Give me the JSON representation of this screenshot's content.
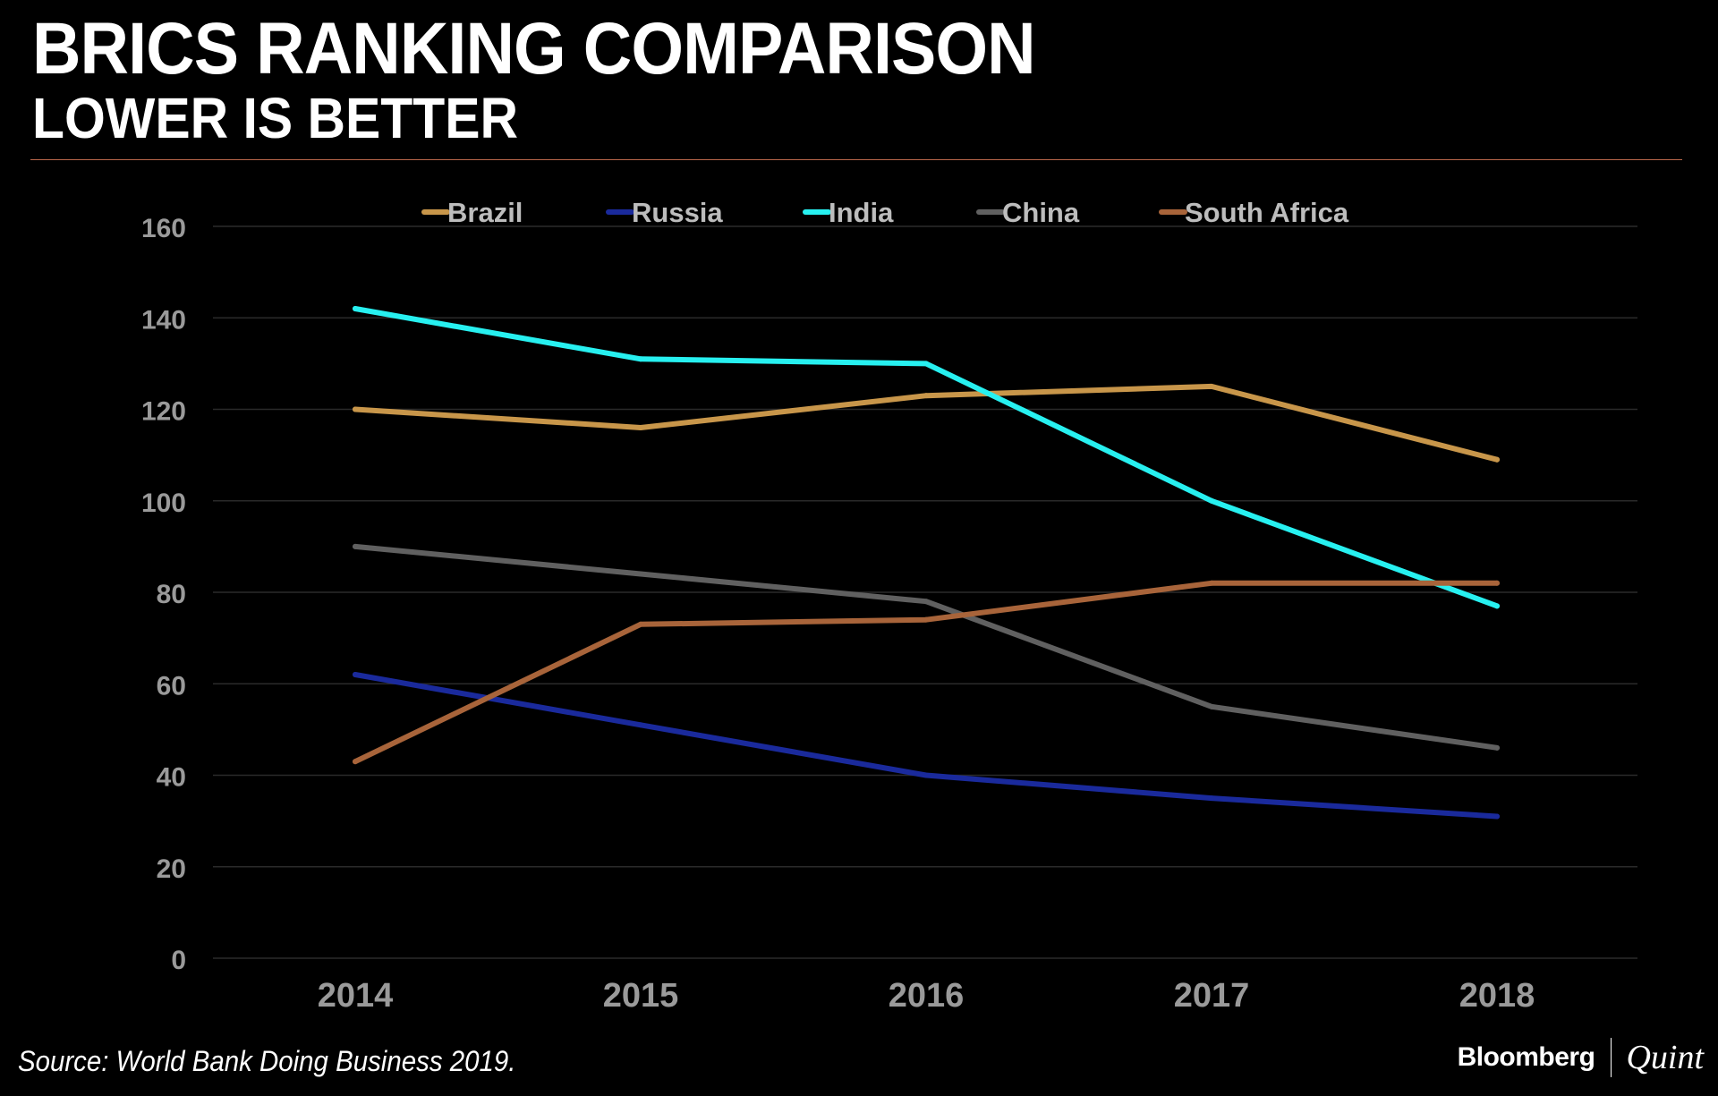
{
  "header": {
    "title": "BRICS RANKING COMPARISON",
    "subtitle": "LOWER IS BETTER"
  },
  "footer": {
    "source": "Source: World Bank Doing Business 2019.",
    "brand_primary": "Bloomberg",
    "brand_secondary": "Quint"
  },
  "colors": {
    "background": "#000000",
    "divider": "#b8664a",
    "gridline": "#2a2a2a",
    "tick_label": "#9a9a9a",
    "legend_text": "#bdbdbd"
  },
  "chart_data": {
    "type": "line",
    "title": "BRICS RANKING COMPARISON",
    "subtitle": "LOWER IS BETTER",
    "xlabel": "",
    "ylabel": "",
    "categories": [
      "2014",
      "2015",
      "2016",
      "2017",
      "2018"
    ],
    "ylim": [
      0,
      160
    ],
    "yticks": [
      0,
      20,
      40,
      60,
      80,
      100,
      120,
      140,
      160
    ],
    "grid": true,
    "legend_position": "top",
    "series": [
      {
        "name": "Brazil",
        "color": "#c8964a",
        "values": [
          120,
          116,
          123,
          125,
          109
        ]
      },
      {
        "name": "Russia",
        "color": "#1a2a9c",
        "values": [
          62,
          51,
          40,
          35,
          31
        ]
      },
      {
        "name": "India",
        "color": "#27f0f0",
        "values": [
          142,
          131,
          130,
          100,
          77
        ]
      },
      {
        "name": "China",
        "color": "#606060",
        "values": [
          90,
          84,
          78,
          55,
          46
        ]
      },
      {
        "name": "South Africa",
        "color": "#a8643a",
        "values": [
          43,
          73,
          74,
          82,
          82
        ]
      }
    ]
  }
}
